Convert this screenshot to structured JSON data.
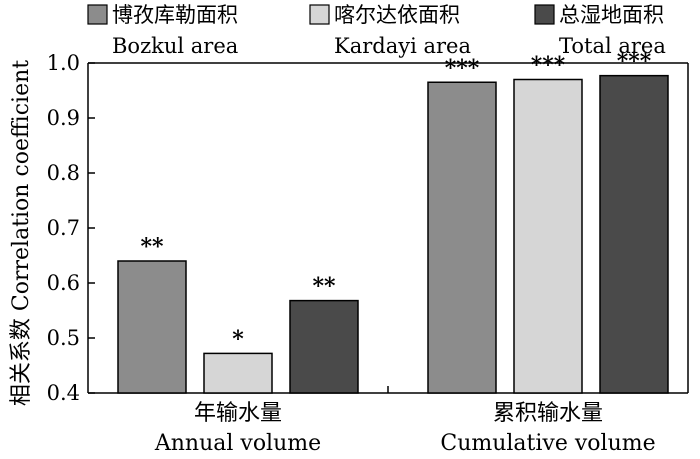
{
  "chart_data": {
    "type": "bar",
    "categories": [
      {
        "zh": "年输水量",
        "en": "Annual volume"
      },
      {
        "zh": "累积输水量",
        "en": "Cumulative volume"
      }
    ],
    "series": [
      {
        "name_zh": "博孜库勒面积",
        "name_en": "Bozkul area",
        "color": "#8c8c8c",
        "values": [
          0.64,
          0.965
        ],
        "significance": [
          "**",
          "***"
        ]
      },
      {
        "name_zh": "喀尔达依面积",
        "name_en": "Kardayi area",
        "color": "#d6d6d6",
        "values": [
          0.472,
          0.97
        ],
        "significance": [
          "*",
          "***"
        ]
      },
      {
        "name_zh": "总湿地面积",
        "name_en": "Total area",
        "color": "#4a4a4a",
        "values": [
          0.568,
          0.977
        ],
        "significance": [
          "**",
          "***"
        ]
      }
    ],
    "ylabel": "相关系数 Correlation coefficient",
    "ylim": [
      0.4,
      1.0
    ],
    "yticks": [
      "0.4",
      "0.5",
      "0.6",
      "0.7",
      "0.8",
      "0.9",
      "1.0"
    ],
    "grid": false,
    "legend": "top"
  }
}
